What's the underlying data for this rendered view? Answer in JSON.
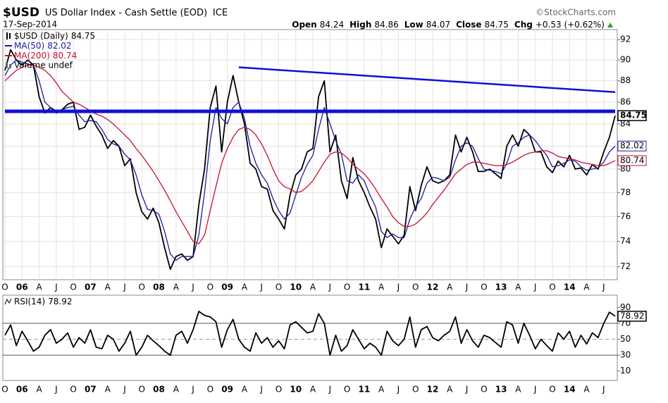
{
  "header": {
    "symbol": "$USD",
    "name": "US Dollar Index - Cash Settle (EOD)",
    "exchange": "ICE",
    "source": "©StockCharts.com",
    "date": "17-Sep-2014",
    "quote": [
      {
        "label": "Open",
        "value": 84.24
      },
      {
        "label": "High",
        "value": 84.86
      },
      {
        "label": "Low",
        "value": 84.07
      },
      {
        "label": "Close",
        "value": 84.75
      },
      {
        "label": "Chg",
        "value": "+0.53 (+0.62%)"
      }
    ]
  },
  "chart_data": [
    {
      "type": "line",
      "log_scale": true,
      "grid": true,
      "categories": [
        "O",
        null,
        null,
        "06",
        null,
        null,
        "A",
        null,
        null,
        "J",
        null,
        null,
        "O",
        null,
        null,
        "07",
        null,
        null,
        "A",
        null,
        null,
        "J",
        null,
        null,
        "O",
        null,
        null,
        "08",
        null,
        null,
        "A",
        null,
        null,
        "J",
        null,
        null,
        "O",
        null,
        null,
        "09",
        null,
        null,
        "A",
        null,
        null,
        "J",
        null,
        null,
        "O",
        null,
        null,
        "10",
        null,
        null,
        "A",
        null,
        null,
        "J",
        null,
        null,
        "O",
        null,
        null,
        "11",
        null,
        null,
        "A",
        null,
        null,
        "J",
        null,
        null,
        "O",
        null,
        null,
        "12",
        null,
        null,
        "A",
        null,
        null,
        "J",
        null,
        null,
        "O",
        null,
        null,
        "13",
        null,
        null,
        "A",
        null,
        null,
        "J",
        null,
        null,
        "O",
        null,
        null,
        "14",
        null,
        null,
        "A",
        null,
        null,
        "J",
        null,
        null
      ],
      "ylim": [
        71,
        93
      ],
      "yticks": [
        72,
        74,
        76,
        78,
        80,
        82,
        84,
        86,
        88,
        90,
        92
      ],
      "series": [
        {
          "name": "$USD (Daily)",
          "color": "#000000",
          "values": [
            89,
            91,
            90,
            89.5,
            90,
            89.5,
            86.5,
            85,
            85.5,
            85,
            85.3,
            85.8,
            86,
            83.5,
            83.7,
            84.8,
            83.8,
            83,
            81.8,
            82.5,
            82,
            80.3,
            80.9,
            78,
            76.4,
            75.8,
            76.7,
            75.5,
            73.5,
            71.8,
            72.8,
            73,
            72.5,
            72.8,
            77,
            80,
            85.5,
            87.5,
            81.5,
            86,
            88.5,
            86,
            84,
            80.5,
            80,
            78.5,
            78.3,
            76.5,
            75.8,
            75,
            77.8,
            79.5,
            80,
            81.5,
            81.8,
            86.5,
            88,
            81.5,
            83,
            79,
            77.5,
            81,
            79,
            78,
            76.8,
            75.8,
            73.5,
            75,
            74.4,
            73.8,
            74.5,
            78.5,
            76.5,
            78.6,
            80.2,
            79,
            78.8,
            79,
            79.5,
            83,
            81.5,
            82.8,
            81.5,
            79.8,
            79.8,
            80,
            79.6,
            79.2,
            82,
            83,
            82,
            83.5,
            83,
            81.5,
            81.5,
            80.2,
            79.7,
            80.7,
            80.2,
            81.2,
            80,
            80.1,
            79.5,
            80.4,
            80,
            81.5,
            82.8,
            84.75
          ]
        },
        {
          "name": "MA(50)",
          "color": "#1c1c9c",
          "values": [
            88.5,
            89.5,
            90,
            89.8,
            89.6,
            89.5,
            88,
            86,
            85.5,
            85.2,
            85.3,
            85.5,
            85.6,
            84.8,
            84.2,
            84.3,
            84.2,
            83.5,
            82.6,
            82.2,
            82,
            81.3,
            80.8,
            79.5,
            77.8,
            76.6,
            76.5,
            76.2,
            74.8,
            73,
            72.5,
            72.8,
            72.8,
            72.8,
            74.5,
            78,
            82.5,
            85.5,
            84.5,
            84,
            85.5,
            86,
            84.5,
            82,
            80.5,
            79.5,
            78.8,
            77.5,
            76.5,
            75.8,
            76.3,
            77.8,
            79.3,
            80.4,
            81.2,
            83.5,
            85.5,
            84,
            82.5,
            81.3,
            79,
            78.8,
            79.5,
            79,
            77.8,
            76.8,
            74.8,
            74.3,
            74.6,
            74.3,
            74.3,
            75.8,
            76.8,
            77.5,
            78.8,
            79.3,
            79.2,
            79,
            79.3,
            80.8,
            82,
            82.3,
            82,
            80.9,
            80,
            79.9,
            79.8,
            79.6,
            80.5,
            82,
            82.3,
            82.8,
            83,
            82.5,
            81.8,
            81.2,
            80.2,
            80.3,
            80.5,
            80.8,
            80.7,
            80.2,
            79.9,
            80,
            80.1,
            80.6,
            81.5,
            82.02
          ]
        },
        {
          "name": "MA(200)",
          "color": "#c8102e",
          "values": [
            88,
            88.5,
            89,
            89.3,
            89.5,
            89.5,
            89.3,
            89,
            88.5,
            87.8,
            87,
            86.5,
            86,
            85.8,
            85.5,
            85.2,
            84.9,
            84.7,
            84.4,
            84,
            83.5,
            83,
            82.5,
            81.8,
            81.2,
            80.5,
            79.8,
            79,
            78.2,
            77.3,
            76.4,
            75.6,
            74.8,
            74,
            73.8,
            74.5,
            76.5,
            78.5,
            80.5,
            81.8,
            82.8,
            83.5,
            83.7,
            83.5,
            83,
            82.2,
            81.2,
            80,
            79,
            78.5,
            78.3,
            78,
            78.1,
            78.5,
            79,
            79.8,
            80.6,
            81.3,
            81.5,
            81.4,
            81,
            80.4,
            80,
            79.6,
            79,
            78.3,
            77.5,
            76.8,
            76,
            75.5,
            75.2,
            75.2,
            75.4,
            75.8,
            76.3,
            77,
            77.6,
            78.2,
            78.9,
            79.6,
            80,
            80.4,
            80.6,
            80.6,
            80.5,
            80.4,
            80.3,
            80.3,
            80.4,
            80.6,
            80.9,
            81.2,
            81.4,
            81.5,
            81.6,
            81.6,
            81.4,
            81.1,
            81,
            80.9,
            80.8,
            80.6,
            80.5,
            80.4,
            80.3,
            80.3,
            80.5,
            80.74
          ]
        }
      ],
      "legend_note": "Volume undef",
      "trendlines": [
        {
          "color": "#1010d8",
          "x": [
            41,
            107
          ],
          "values": [
            89.29,
            86.93
          ]
        },
        {
          "color": "#1010d8",
          "x": [
            0,
            107
          ],
          "values": [
            85.15,
            85.15
          ]
        }
      ]
    },
    {
      "type": "line",
      "grid": false,
      "categories": [
        "O",
        null,
        null,
        "06",
        null,
        null,
        "A",
        null,
        null,
        "J",
        null,
        null,
        "O",
        null,
        null,
        "07",
        null,
        null,
        "A",
        null,
        null,
        "J",
        null,
        null,
        "O",
        null,
        null,
        "08",
        null,
        null,
        "A",
        null,
        null,
        "J",
        null,
        null,
        "O",
        null,
        null,
        "09",
        null,
        null,
        "A",
        null,
        null,
        "J",
        null,
        null,
        "O",
        null,
        null,
        "10",
        null,
        null,
        "A",
        null,
        null,
        "J",
        null,
        null,
        "O",
        null,
        null,
        "11",
        null,
        null,
        "A",
        null,
        null,
        "J",
        null,
        null,
        "O",
        null,
        null,
        "12",
        null,
        null,
        "A",
        null,
        null,
        "J",
        null,
        null,
        "O",
        null,
        null,
        "13",
        null,
        null,
        "A",
        null,
        null,
        "J",
        null,
        null,
        "O",
        null,
        null,
        "14",
        null,
        null,
        "A",
        null,
        null,
        "J",
        null,
        null
      ],
      "ylim": [
        0,
        100
      ],
      "yticks": [
        10,
        30,
        50,
        70,
        90
      ],
      "levels": [
        70,
        50,
        30
      ],
      "series": [
        {
          "name": "RSI(14)",
          "color": "#000000",
          "values": [
            55,
            68,
            42,
            60,
            48,
            35,
            40,
            55,
            62,
            45,
            50,
            58,
            40,
            52,
            45,
            62,
            40,
            38,
            55,
            50,
            35,
            45,
            60,
            30,
            40,
            55,
            48,
            42,
            35,
            30,
            55,
            60,
            45,
            62,
            85,
            80,
            78,
            72,
            40,
            62,
            75,
            50,
            40,
            35,
            58,
            45,
            52,
            40,
            48,
            38,
            68,
            72,
            65,
            58,
            60,
            82,
            70,
            30,
            55,
            35,
            42,
            62,
            50,
            38,
            45,
            40,
            30,
            60,
            48,
            42,
            50,
            78,
            40,
            62,
            66,
            52,
            48,
            55,
            60,
            78,
            45,
            62,
            48,
            40,
            55,
            52,
            46,
            40,
            72,
            68,
            45,
            70,
            55,
            38,
            50,
            42,
            35,
            58,
            50,
            60,
            40,
            55,
            44,
            58,
            52,
            70,
            84,
            78.92
          ]
        }
      ]
    }
  ]
}
